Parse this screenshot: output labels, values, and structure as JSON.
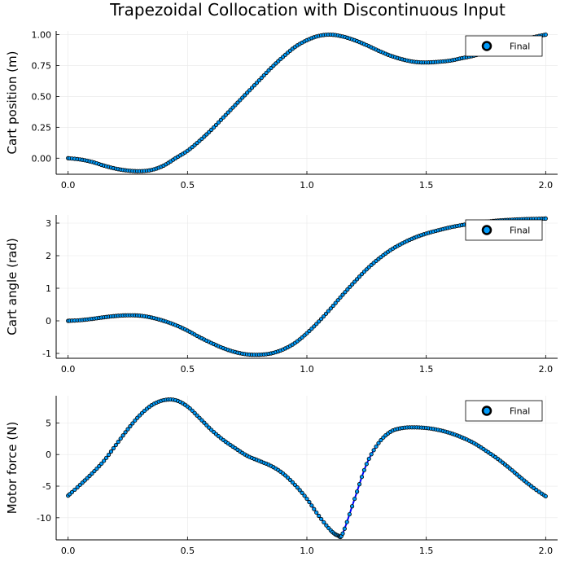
{
  "figure": {
    "title": "Trapezoidal Collocation with Discontinuous Input"
  },
  "colors": {
    "line": "#0000ff",
    "marker_fill": "#009af9",
    "marker_edge": "#000000",
    "grid": "#e8e8e8",
    "axis": "#000000"
  },
  "chart_data": [
    {
      "type": "line",
      "ylabel": "Cart position (m)",
      "xlabel": "",
      "xlim": [
        -0.05,
        2.05
      ],
      "ylim": [
        -0.13,
        1.03
      ],
      "xticks": [
        "0.0",
        "0.5",
        "1.0",
        "1.5",
        "2.0"
      ],
      "xtick_values": [
        0,
        0.5,
        1.0,
        1.5,
        2.0
      ],
      "yticks": [
        "0.00",
        "0.25",
        "0.50",
        "0.75",
        "1.00"
      ],
      "ytick_values": [
        0,
        0.25,
        0.5,
        0.75,
        1.0
      ],
      "grid": true,
      "legend": {
        "entries": [
          "Final"
        ],
        "placement": "top-right"
      },
      "series": [
        {
          "name": "Final",
          "x": [
            0.0,
            0.05,
            0.1,
            0.15,
            0.2,
            0.25,
            0.3,
            0.35,
            0.4,
            0.45,
            0.5,
            0.55,
            0.6,
            0.65,
            0.7,
            0.75,
            0.8,
            0.85,
            0.9,
            0.95,
            1.0,
            1.05,
            1.1,
            1.15,
            1.2,
            1.25,
            1.3,
            1.35,
            1.4,
            1.45,
            1.5,
            1.55,
            1.6,
            1.65,
            1.7,
            1.75,
            1.8,
            1.85,
            1.9,
            1.95,
            2.0
          ],
          "y": [
            0.0,
            -0.01,
            -0.03,
            -0.06,
            -0.085,
            -0.1,
            -0.105,
            -0.095,
            -0.06,
            0.0,
            0.06,
            0.14,
            0.23,
            0.33,
            0.43,
            0.53,
            0.63,
            0.73,
            0.82,
            0.9,
            0.955,
            0.99,
            1.0,
            0.985,
            0.955,
            0.915,
            0.87,
            0.83,
            0.8,
            0.78,
            0.775,
            0.78,
            0.79,
            0.81,
            0.83,
            0.86,
            0.89,
            0.92,
            0.95,
            0.98,
            1.0
          ]
        }
      ]
    },
    {
      "type": "line",
      "ylabel": "Cart angle (rad)",
      "xlabel": "",
      "xlim": [
        -0.05,
        2.05
      ],
      "ylim": [
        -1.15,
        3.25
      ],
      "xticks": [
        "0.0",
        "0.5",
        "1.0",
        "1.5",
        "2.0"
      ],
      "xtick_values": [
        0,
        0.5,
        1.0,
        1.5,
        2.0
      ],
      "yticks": [
        "-1",
        "0",
        "1",
        "2",
        "3"
      ],
      "ytick_values": [
        -1,
        0,
        1,
        2,
        3
      ],
      "grid": true,
      "legend": {
        "entries": [
          "Final"
        ],
        "placement": "top-right"
      },
      "series": [
        {
          "name": "Final",
          "x": [
            0.0,
            0.05,
            0.1,
            0.15,
            0.2,
            0.25,
            0.3,
            0.35,
            0.4,
            0.45,
            0.5,
            0.55,
            0.6,
            0.65,
            0.7,
            0.75,
            0.8,
            0.85,
            0.9,
            0.95,
            1.0,
            1.05,
            1.1,
            1.15,
            1.2,
            1.25,
            1.3,
            1.35,
            1.4,
            1.45,
            1.5,
            1.55,
            1.6,
            1.65,
            1.7,
            1.75,
            1.8,
            1.85,
            1.9,
            1.95,
            2.0
          ],
          "y": [
            0.0,
            0.02,
            0.06,
            0.11,
            0.15,
            0.17,
            0.16,
            0.1,
            0.0,
            -0.13,
            -0.3,
            -0.5,
            -0.68,
            -0.84,
            -0.96,
            -1.03,
            -1.04,
            -1.0,
            -0.88,
            -0.68,
            -0.38,
            -0.02,
            0.38,
            0.8,
            1.2,
            1.58,
            1.9,
            2.17,
            2.38,
            2.55,
            2.68,
            2.78,
            2.87,
            2.94,
            3.0,
            3.04,
            3.08,
            3.1,
            3.12,
            3.13,
            3.14
          ]
        }
      ]
    },
    {
      "type": "line",
      "ylabel": "Motor force (N)",
      "xlabel": "",
      "xlim": [
        -0.05,
        2.05
      ],
      "ylim": [
        -13.5,
        9.3
      ],
      "xticks": [
        "0.0",
        "0.5",
        "1.0",
        "1.5",
        "2.0"
      ],
      "xtick_values": [
        0,
        0.5,
        1.0,
        1.5,
        2.0
      ],
      "yticks": [
        "5",
        "0",
        "-5",
        "-10"
      ],
      "ytick_values": [
        5,
        0,
        -5,
        -10
      ],
      "grid": true,
      "legend": {
        "entries": [
          "Final"
        ],
        "placement": "top-right"
      },
      "series": [
        {
          "name": "Final",
          "x": [
            0.0,
            0.05,
            0.1,
            0.15,
            0.2,
            0.25,
            0.3,
            0.35,
            0.4,
            0.45,
            0.5,
            0.55,
            0.6,
            0.65,
            0.7,
            0.75,
            0.8,
            0.85,
            0.9,
            0.95,
            1.0,
            1.05,
            1.1,
            1.13,
            1.15,
            1.2,
            1.25,
            1.3,
            1.35,
            1.4,
            1.45,
            1.5,
            1.55,
            1.6,
            1.65,
            1.7,
            1.75,
            1.8,
            1.85,
            1.9,
            1.95,
            2.0
          ],
          "y": [
            -6.5,
            -4.8,
            -3.0,
            -1.0,
            1.5,
            4.0,
            6.2,
            7.8,
            8.6,
            8.6,
            7.6,
            5.8,
            3.9,
            2.3,
            1.0,
            -0.2,
            -1.0,
            -1.8,
            -3.0,
            -4.8,
            -7.0,
            -9.7,
            -12.0,
            -12.8,
            -12.5,
            -7.0,
            -1.5,
            1.8,
            3.6,
            4.2,
            4.3,
            4.2,
            3.9,
            3.4,
            2.7,
            1.8,
            0.6,
            -0.7,
            -2.2,
            -3.8,
            -5.3,
            -6.6
          ]
        }
      ]
    }
  ]
}
